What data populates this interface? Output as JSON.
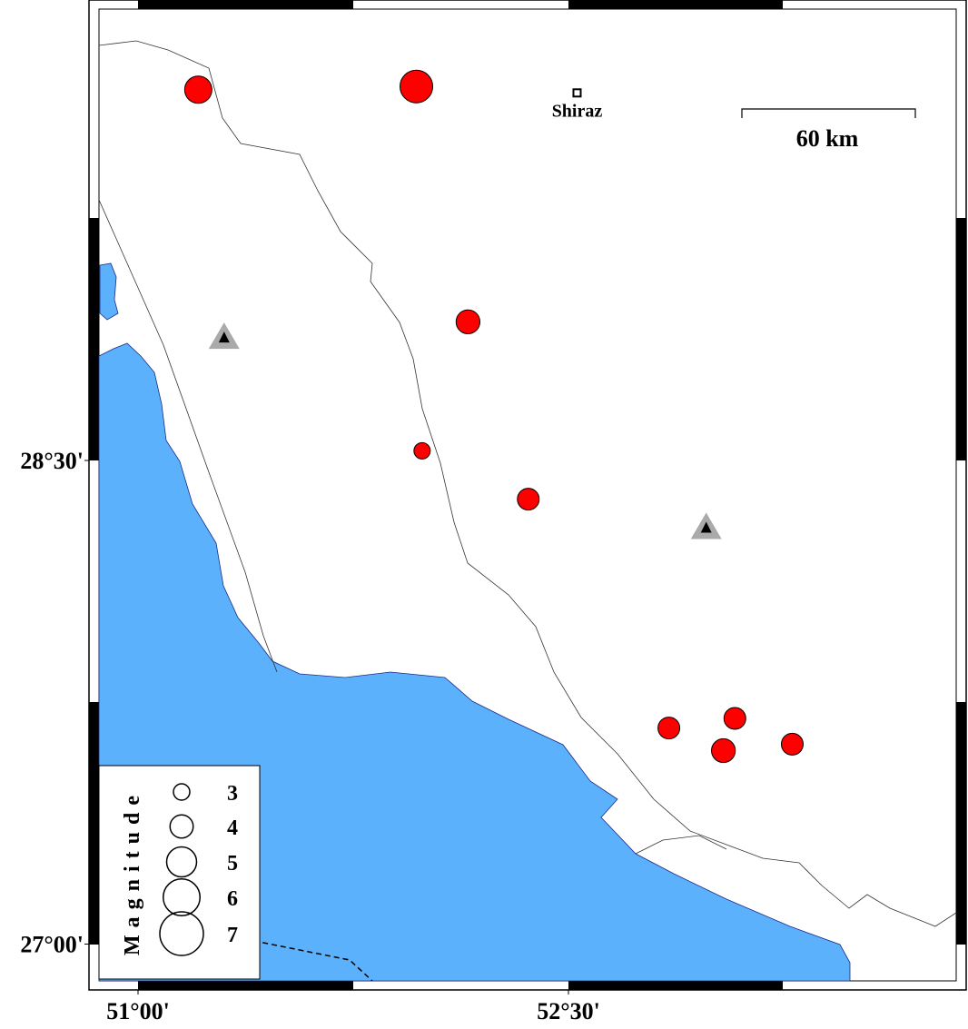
{
  "map": {
    "lon_ticks": [
      {
        "value": 51.0,
        "label": "51°00'"
      },
      {
        "value": 52.5,
        "label": "52°30'"
      }
    ],
    "lat_ticks": [
      {
        "value": 28.5,
        "label": "28°30'"
      },
      {
        "value": 27.0,
        "label": "27°00'"
      }
    ],
    "city": {
      "name": "Shiraz",
      "lon": 52.53,
      "lat": 29.64
    },
    "scale_bar": "60 km",
    "events": [
      {
        "lon": 51.21,
        "lat": 29.65,
        "magnitude": 4.6
      },
      {
        "lon": 51.97,
        "lat": 29.66,
        "magnitude": 5.4
      },
      {
        "lon": 52.15,
        "lat": 28.93,
        "magnitude": 4.1
      },
      {
        "lon": 51.99,
        "lat": 28.53,
        "magnitude": 3.0
      },
      {
        "lon": 52.36,
        "lat": 28.38,
        "magnitude": 3.8
      },
      {
        "lon": 52.85,
        "lat": 27.67,
        "magnitude": 3.8
      },
      {
        "lon": 53.08,
        "lat": 27.7,
        "magnitude": 3.8
      },
      {
        "lon": 53.04,
        "lat": 27.6,
        "magnitude": 4.1
      },
      {
        "lon": 53.28,
        "lat": 27.62,
        "magnitude": 3.8
      }
    ],
    "stations": [
      {
        "lon": 51.3,
        "lat": 28.88
      },
      {
        "lon": 52.98,
        "lat": 28.29
      }
    ],
    "legend": {
      "title": "Magnitude",
      "items": [
        3,
        4,
        5,
        6,
        7
      ]
    }
  }
}
